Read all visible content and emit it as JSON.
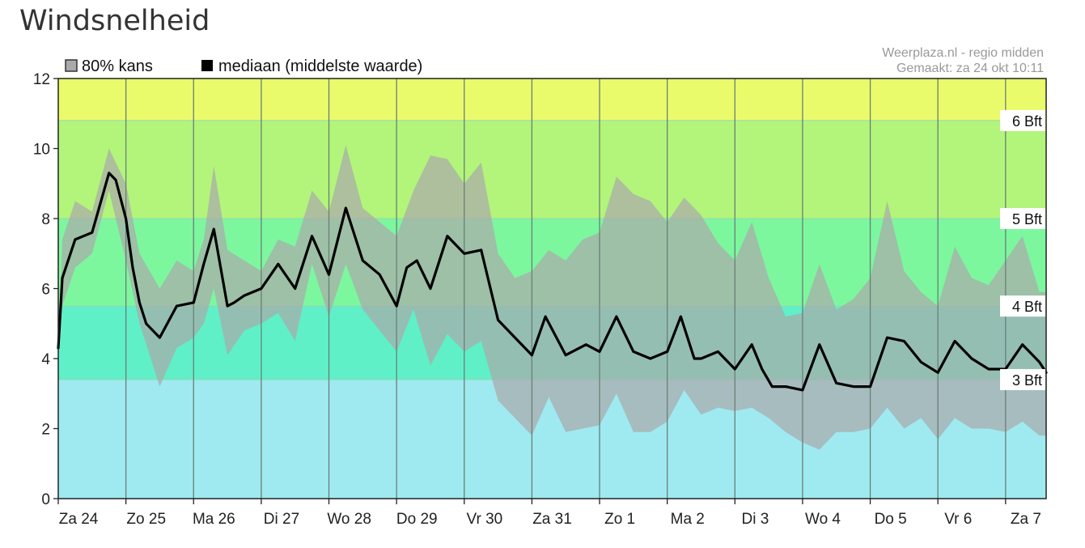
{
  "page": {
    "title": "Windsnelheid"
  },
  "chart_data": {
    "type": "area",
    "title": "",
    "xlabel": "",
    "ylabel": "",
    "ylim": [
      0,
      12
    ],
    "yticks": [
      0,
      2,
      4,
      6,
      8,
      10,
      12
    ],
    "x_unit": "days",
    "xlim": [
      0,
      14.6
    ],
    "categories": [
      "Za 24",
      "Zo 25",
      "Ma 26",
      "Di 27",
      "Wo 28",
      "Do 29",
      "Vr 30",
      "Za 31",
      "Zo 1",
      "Ma 2",
      "Di 3",
      "Wo 4",
      "Do 5",
      "Vr 6",
      "Za 7"
    ],
    "credit": [
      "Weerplaza.nl - regio midden",
      "Gemaakt: za 24 okt 10:11"
    ],
    "legend": [
      {
        "name": "80% kans",
        "color": "#aaaaaa"
      },
      {
        "name": "mediaan (middelste waarde)",
        "color": "#000000"
      }
    ],
    "bands": [
      {
        "from": 0,
        "to": 3.4,
        "color": "#9eeaf0"
      },
      {
        "from": 3.4,
        "to": 5.5,
        "color": "#5ff0c8"
      },
      {
        "from": 5.5,
        "to": 8.0,
        "color": "#7cf79e"
      },
      {
        "from": 8.0,
        "to": 10.8,
        "color": "#b2f57a"
      },
      {
        "from": 10.8,
        "to": 12,
        "color": "#e9fb6a"
      }
    ],
    "band_labels": [
      {
        "label": "3 Bft",
        "value": 3.4
      },
      {
        "label": "4 Bft",
        "value": 5.5
      },
      {
        "label": "5 Bft",
        "value": 8.0
      },
      {
        "label": "6 Bft",
        "value": 10.8
      }
    ],
    "series": [
      {
        "name": "mediaan (middelste waarde)",
        "color": "#000000",
        "x": [
          0,
          0.06,
          0.25,
          0.5,
          0.75,
          0.85,
          1.0,
          1.1,
          1.2,
          1.3,
          1.5,
          1.75,
          2.0,
          2.15,
          2.3,
          2.5,
          2.6,
          2.75,
          3.0,
          3.25,
          3.5,
          3.75,
          4.0,
          4.25,
          4.5,
          4.75,
          5.0,
          5.15,
          5.3,
          5.5,
          5.75,
          6.0,
          6.25,
          6.5,
          6.75,
          7.0,
          7.2,
          7.5,
          7.8,
          8.0,
          8.25,
          8.5,
          8.75,
          9.0,
          9.2,
          9.4,
          9.5,
          9.75,
          10.0,
          10.25,
          10.4,
          10.55,
          10.75,
          11.0,
          11.25,
          11.5,
          11.75,
          12.0,
          12.25,
          12.5,
          12.75,
          13.0,
          13.25,
          13.5,
          13.75,
          14.0,
          14.25,
          14.5,
          14.6
        ],
        "values": [
          4.3,
          6.3,
          7.4,
          7.6,
          9.3,
          9.1,
          8.0,
          6.6,
          5.6,
          5.0,
          4.6,
          5.5,
          5.6,
          6.7,
          7.7,
          5.5,
          5.6,
          5.8,
          6.0,
          6.7,
          6.0,
          7.5,
          6.4,
          8.3,
          6.8,
          6.4,
          5.5,
          6.6,
          6.8,
          6.0,
          7.5,
          7.0,
          7.1,
          5.1,
          4.6,
          4.1,
          5.2,
          4.1,
          4.4,
          4.2,
          5.2,
          4.2,
          4.0,
          4.2,
          5.2,
          4.0,
          4.0,
          4.2,
          3.7,
          4.4,
          3.7,
          3.2,
          3.2,
          3.1,
          4.4,
          3.3,
          3.2,
          3.2,
          4.6,
          4.5,
          3.9,
          3.6,
          4.5,
          4.0,
          3.7,
          3.7,
          4.4,
          3.9,
          3.6
        ]
      },
      {
        "name": "80% kans",
        "color": "#aaaaaa",
        "x": [
          0,
          0.06,
          0.25,
          0.5,
          0.75,
          1.0,
          1.2,
          1.5,
          1.75,
          2.0,
          2.15,
          2.3,
          2.5,
          2.75,
          3.0,
          3.25,
          3.5,
          3.75,
          4.0,
          4.25,
          4.5,
          4.75,
          5.0,
          5.25,
          5.5,
          5.75,
          6.0,
          6.25,
          6.5,
          6.75,
          7.0,
          7.25,
          7.5,
          7.75,
          8.0,
          8.25,
          8.5,
          8.75,
          9.0,
          9.25,
          9.5,
          9.75,
          10.0,
          10.25,
          10.5,
          10.75,
          11.0,
          11.25,
          11.5,
          11.75,
          12.0,
          12.25,
          12.5,
          12.75,
          13.0,
          13.25,
          13.5,
          13.75,
          14.0,
          14.25,
          14.5,
          14.6
        ],
        "lower": [
          4.3,
          5.5,
          6.6,
          7.0,
          8.8,
          6.8,
          5.0,
          3.2,
          4.3,
          4.6,
          5.0,
          6.0,
          4.1,
          4.8,
          5.0,
          5.3,
          4.5,
          6.7,
          5.2,
          6.7,
          5.4,
          4.8,
          4.2,
          5.4,
          3.8,
          4.7,
          4.2,
          4.5,
          2.8,
          2.3,
          1.8,
          2.9,
          1.9,
          2.0,
          2.1,
          3.0,
          1.9,
          1.9,
          2.2,
          3.1,
          2.4,
          2.6,
          2.5,
          2.6,
          2.3,
          1.9,
          1.6,
          1.4,
          1.9,
          1.9,
          2.0,
          2.6,
          2.0,
          2.3,
          1.7,
          2.3,
          2.0,
          2.0,
          1.9,
          2.2,
          1.8,
          1.8
        ],
        "upper": [
          4.3,
          7.4,
          8.5,
          8.2,
          10.0,
          9.0,
          7.0,
          6.0,
          6.8,
          6.5,
          7.4,
          9.5,
          7.1,
          6.8,
          6.5,
          7.4,
          7.2,
          8.8,
          8.2,
          10.1,
          8.3,
          7.9,
          7.5,
          8.8,
          9.8,
          9.7,
          9.0,
          9.6,
          7.0,
          6.3,
          6.5,
          7.1,
          6.8,
          7.4,
          7.6,
          9.2,
          8.7,
          8.5,
          7.9,
          8.6,
          8.1,
          7.3,
          6.8,
          7.9,
          6.3,
          5.2,
          5.3,
          6.7,
          5.4,
          5.7,
          6.3,
          8.5,
          6.5,
          5.9,
          5.5,
          7.2,
          6.3,
          6.1,
          6.8,
          7.5,
          5.9,
          5.9
        ]
      }
    ]
  }
}
